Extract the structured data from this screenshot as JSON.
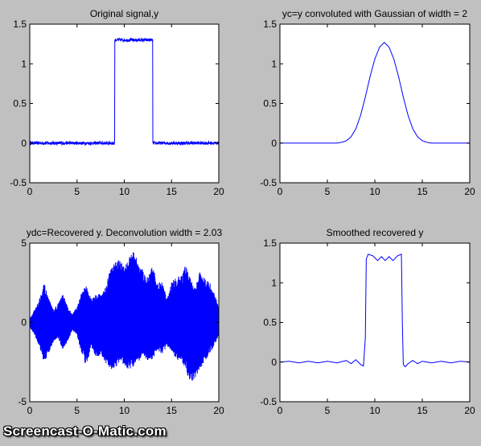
{
  "window": {
    "background": "#c0c0c0",
    "watermark": "Screencast-O-Matic.com"
  },
  "colors": {
    "line": "#0000ff",
    "axes_bg": "#ffffff",
    "axis": "#000000"
  },
  "chart_data": [
    {
      "type": "line",
      "title": "Original signal,y",
      "xlim": [
        0,
        20
      ],
      "ylim": [
        -0.5,
        1.5
      ],
      "xticks": [
        0,
        5,
        10,
        15,
        20
      ],
      "yticks": [
        -0.5,
        0,
        0.5,
        1,
        1.5
      ],
      "ytick_labels": [
        "-0.5",
        "0",
        "0.5",
        "1",
        "1.5"
      ],
      "grid": false,
      "series": [
        {
          "kind": "noisy_pulse",
          "x": [
            0,
            9,
            9,
            13,
            13,
            20
          ],
          "y": [
            0,
            0,
            1.3,
            1.3,
            0,
            0
          ],
          "noise_amplitude": 0.02
        }
      ]
    },
    {
      "type": "line",
      "title": "yc=y convoluted with Gaussian of width = 2",
      "xlim": [
        0,
        20
      ],
      "ylim": [
        -0.5,
        1.5
      ],
      "xticks": [
        0,
        5,
        10,
        15,
        20
      ],
      "yticks": [
        -0.5,
        0,
        0.5,
        1,
        1.5
      ],
      "ytick_labels": [
        "-0.5",
        "0",
        "0.5",
        "1",
        "1.5"
      ],
      "grid": false,
      "series": [
        {
          "kind": "smooth",
          "x": [
            0,
            6,
            6.5,
            7,
            7.5,
            8,
            8.5,
            9,
            9.5,
            10,
            10.5,
            11,
            11.5,
            12,
            12.5,
            13,
            13.5,
            14,
            14.5,
            15,
            15.5,
            16,
            20
          ],
          "y": [
            0,
            0,
            0.01,
            0.03,
            0.08,
            0.18,
            0.35,
            0.58,
            0.84,
            1.06,
            1.21,
            1.27,
            1.21,
            1.06,
            0.84,
            0.58,
            0.35,
            0.18,
            0.08,
            0.03,
            0.01,
            0,
            0
          ]
        }
      ]
    },
    {
      "type": "line",
      "title": "ydc=Recovered y. Deconvolution width = 2.03",
      "xlim": [
        0,
        20
      ],
      "ylim": [
        -5,
        5
      ],
      "xticks": [
        0,
        5,
        10,
        15,
        20
      ],
      "yticks": [
        -5,
        0,
        5
      ],
      "ytick_labels": [
        "-5",
        "0",
        "5"
      ],
      "grid": false,
      "series": [
        {
          "kind": "oscillating_envelope",
          "x": [
            0,
            0.5,
            1,
            1.5,
            2,
            2.5,
            3,
            3.5,
            4,
            4.5,
            5,
            5.5,
            6,
            6.5,
            7,
            7.5,
            8,
            8.5,
            9,
            9.5,
            10,
            10.5,
            11,
            11.5,
            12,
            12.5,
            13,
            13.5,
            14,
            14.5,
            15,
            15.5,
            16,
            16.5,
            17,
            17.5,
            18,
            18.5,
            19,
            19.5,
            20
          ],
          "upper": [
            0.2,
            0.8,
            1.5,
            2.5,
            1.5,
            0.8,
            1.2,
            1.8,
            1.0,
            0.5,
            1.0,
            2.0,
            2.3,
            1.5,
            1.8,
            1.8,
            2.2,
            3.3,
            3.8,
            4.0,
            3.7,
            4.0,
            4.9,
            3.7,
            3.3,
            2.8,
            3.6,
            2.5,
            2.6,
            1.5,
            2.6,
            2.8,
            3.0,
            3.6,
            2.8,
            2.2,
            3.2,
            2.8,
            2.6,
            1.9,
            1.0
          ],
          "lower": [
            -0.3,
            -0.8,
            -1.5,
            -2.5,
            -2.0,
            -1.2,
            -1.0,
            -1.8,
            -1.2,
            -0.5,
            -0.8,
            -2.0,
            -2.8,
            -1.5,
            -2.3,
            -2.0,
            -2.5,
            -3.0,
            -2.9,
            -2.5,
            -2.7,
            -3.0,
            -2.8,
            -2.5,
            -2.0,
            -2.5,
            -2.3,
            -1.8,
            -2.0,
            -1.5,
            -1.8,
            -2.4,
            -2.5,
            -3.0,
            -4.0,
            -3.5,
            -3.0,
            -2.5,
            -2.0,
            -1.5,
            -0.8
          ]
        }
      ]
    },
    {
      "type": "line",
      "title": "Smoothed recovered y",
      "xlim": [
        0,
        20
      ],
      "ylim": [
        -0.5,
        1.5
      ],
      "xticks": [
        0,
        5,
        10,
        15,
        20
      ],
      "yticks": [
        -0.5,
        0,
        0.5,
        1,
        1.5
      ],
      "ytick_labels": [
        "-0.5",
        "0",
        "0.5",
        "1",
        "1.5"
      ],
      "grid": false,
      "series": [
        {
          "kind": "smooth",
          "x": [
            0,
            1,
            2,
            3,
            4,
            5,
            6,
            7,
            7.5,
            8,
            8.5,
            8.8,
            9,
            9.1,
            9.3,
            9.8,
            10.3,
            10.7,
            11.1,
            11.5,
            11.9,
            12.4,
            12.8,
            12.9,
            13,
            13.2,
            13.5,
            14,
            14.5,
            15,
            16,
            17,
            18,
            19,
            20
          ],
          "y": [
            0,
            0.01,
            -0.01,
            0.01,
            -0.01,
            0.01,
            -0.01,
            0.02,
            -0.02,
            0.03,
            -0.03,
            -0.05,
            0.3,
            1.3,
            1.36,
            1.34,
            1.28,
            1.33,
            1.28,
            1.33,
            1.28,
            1.34,
            1.36,
            0.5,
            -0.03,
            -0.06,
            -0.02,
            0.02,
            -0.02,
            0.01,
            -0.01,
            0.01,
            -0.01,
            0.01,
            0
          ]
        }
      ]
    }
  ]
}
